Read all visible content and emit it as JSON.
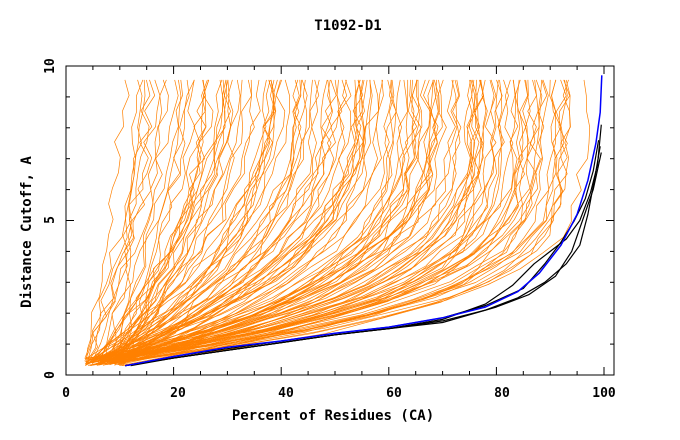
{
  "chart_data": {
    "type": "line",
    "title": "T1092-D1",
    "xlabel": "Percent of Residues (CA)",
    "ylabel": "Distance Cutoff, A",
    "xlim": [
      0,
      100
    ],
    "ylim": [
      0,
      10
    ],
    "x_ticks": [
      "0",
      "20",
      "40",
      "60",
      "80",
      "100"
    ],
    "y_ticks": [
      "0",
      "5",
      "10"
    ],
    "grid": false,
    "colors": {
      "others": "#ff8000",
      "top": "#000000",
      "highlight": "#0000ff"
    },
    "series": [
      {
        "group": "highlight",
        "x": [
          11,
          20,
          30,
          40,
          50,
          60,
          70,
          78,
          84,
          88,
          92,
          95,
          97,
          98.5,
          99.3,
          99.6
        ],
        "y": [
          0.3,
          0.6,
          0.9,
          1.1,
          1.35,
          1.55,
          1.85,
          2.2,
          2.7,
          3.3,
          4.2,
          5.2,
          6.3,
          7.5,
          8.5,
          9.7
        ]
      },
      {
        "group": "top",
        "x": [
          11,
          20,
          30,
          40,
          50,
          60,
          70,
          78,
          85,
          89,
          92,
          94.5,
          96.5,
          98,
          99
        ],
        "y": [
          0.3,
          0.6,
          0.85,
          1.1,
          1.35,
          1.55,
          1.85,
          2.25,
          2.8,
          3.6,
          4.3,
          5.0,
          5.7,
          6.6,
          7.6
        ]
      },
      {
        "group": "top",
        "x": [
          11,
          20,
          30,
          40,
          50,
          60,
          70,
          78,
          83,
          87,
          90,
          93,
          95.5,
          97.5,
          98.8,
          99.5
        ],
        "y": [
          0.3,
          0.55,
          0.8,
          1.05,
          1.3,
          1.5,
          1.8,
          2.3,
          2.9,
          3.6,
          4.0,
          4.4,
          5.0,
          5.9,
          6.8,
          8.1
        ]
      },
      {
        "group": "top",
        "x": [
          11,
          20,
          30,
          40,
          50,
          60,
          70,
          78,
          84,
          89,
          93,
          95.5,
          97,
          98.3,
          99.3
        ],
        "y": [
          0.3,
          0.55,
          0.8,
          1.05,
          1.3,
          1.5,
          1.75,
          2.1,
          2.5,
          3.0,
          3.6,
          4.2,
          5.2,
          6.4,
          7.4
        ]
      },
      {
        "group": "top",
        "x": [
          12,
          20,
          30,
          40,
          50,
          60,
          70,
          80,
          86,
          91,
          94,
          96,
          98,
          99.5
        ],
        "y": [
          0.3,
          0.55,
          0.8,
          1.05,
          1.3,
          1.5,
          1.7,
          2.2,
          2.6,
          3.2,
          4.0,
          5.0,
          6.0,
          7.2
        ]
      }
    ]
  }
}
